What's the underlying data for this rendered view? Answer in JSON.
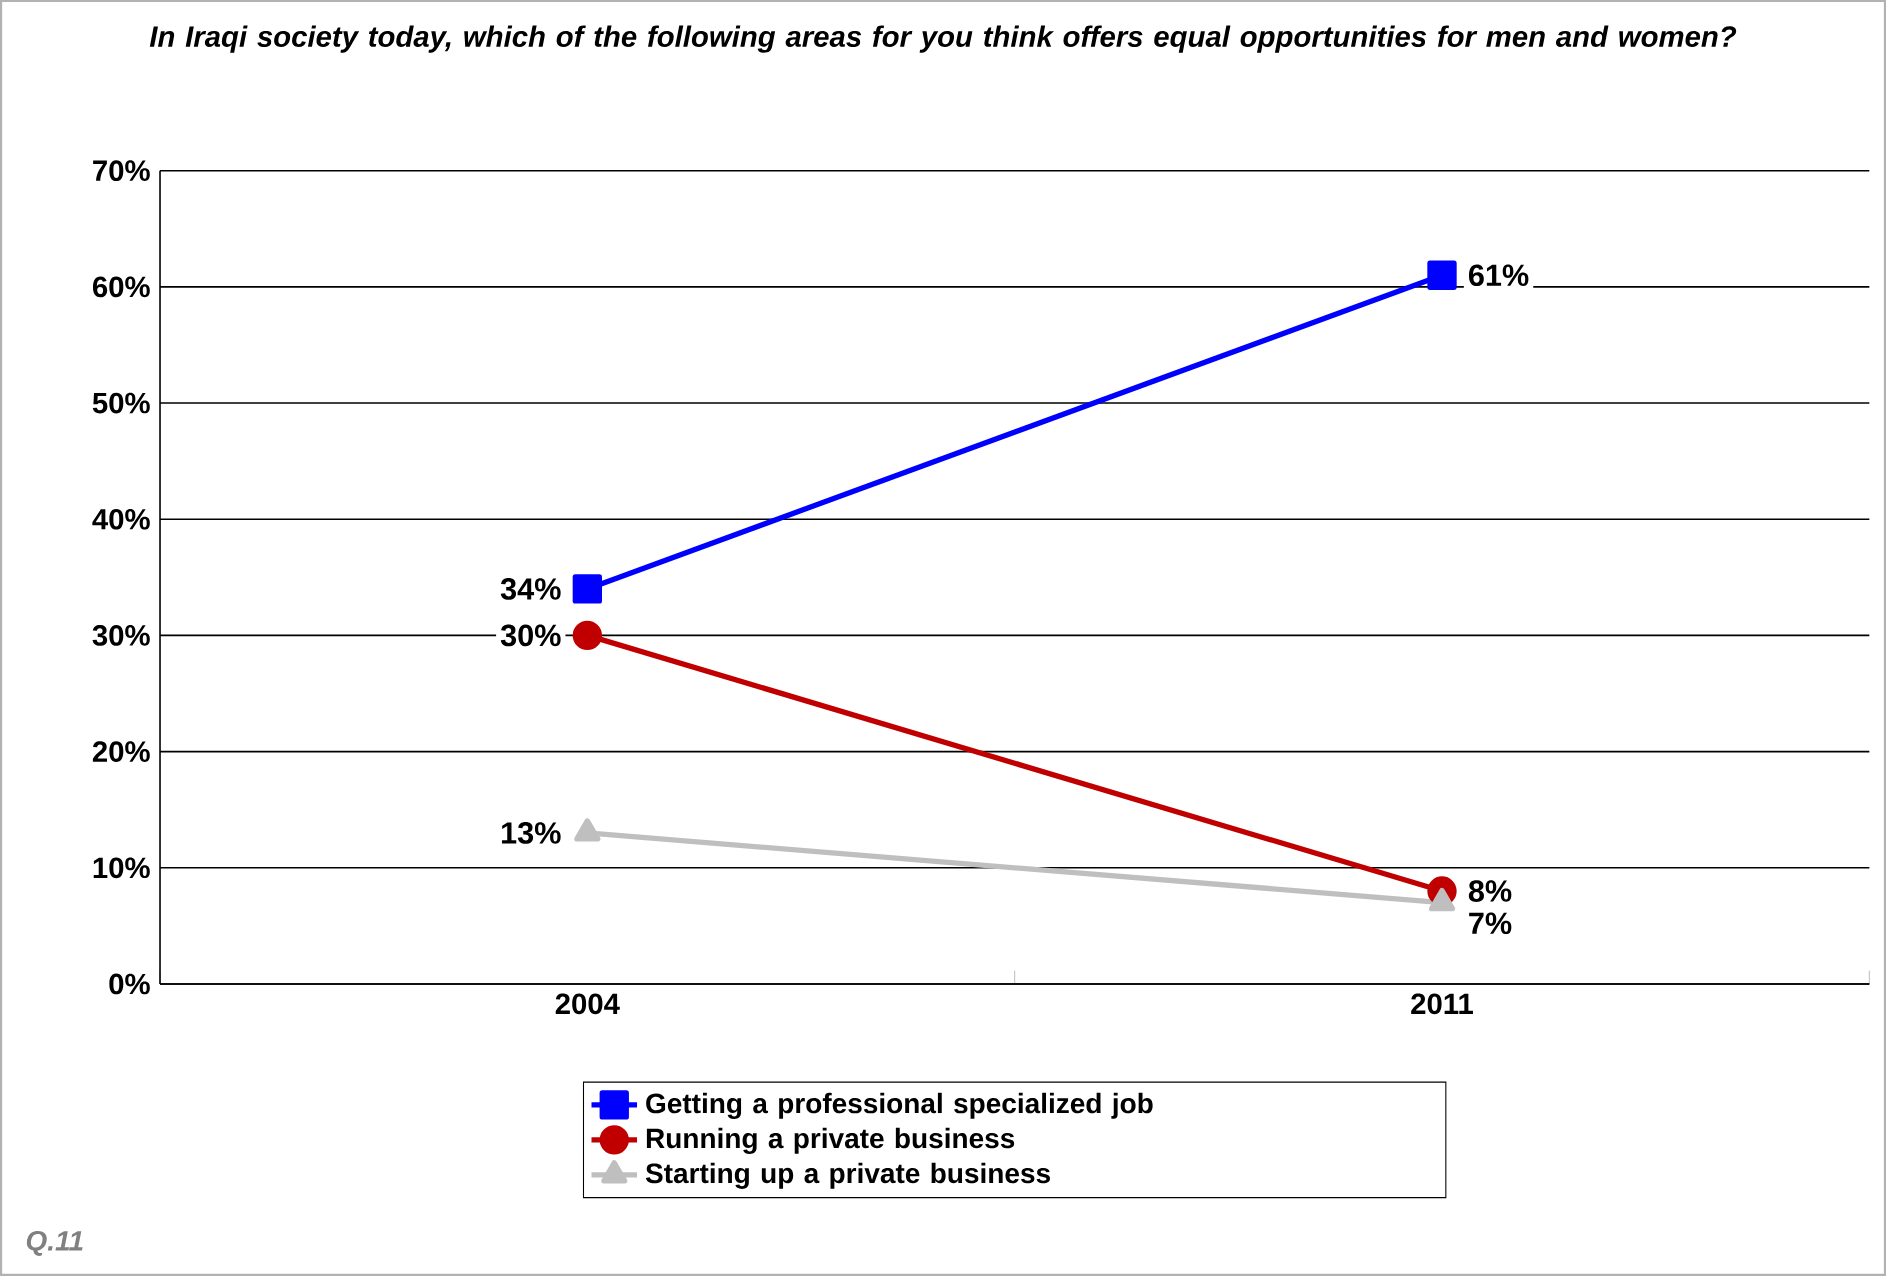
{
  "chart_data": {
    "type": "line",
    "title": "In Iraqi society today, which of the following areas for you think offers equal opportunities for men and women?",
    "categories": [
      "2004",
      "2011"
    ],
    "series": [
      {
        "name": "Getting a professional specialized job",
        "color": "#0000ff",
        "marker": "square",
        "values": [
          34,
          61
        ],
        "value_labels": [
          "34%",
          "61%"
        ]
      },
      {
        "name": "Running a private business",
        "color": "#c00000",
        "marker": "circle",
        "values": [
          30,
          8
        ],
        "value_labels": [
          "30%",
          "8%"
        ]
      },
      {
        "name": "Starting up a private business",
        "color": "#bfbfbf",
        "marker": "triangle",
        "values": [
          13,
          7
        ],
        "value_labels": [
          "13%",
          "7%"
        ]
      }
    ],
    "ylim": [
      0,
      70
    ],
    "yticks": [
      {
        "value": 0,
        "label": "0%"
      },
      {
        "value": 10,
        "label": "10%"
      },
      {
        "value": 20,
        "label": "20%"
      },
      {
        "value": 30,
        "label": "30%"
      },
      {
        "value": 40,
        "label": "40%"
      },
      {
        "value": 50,
        "label": "50%"
      },
      {
        "value": 60,
        "label": "60%"
      },
      {
        "value": 70,
        "label": "70%"
      }
    ],
    "grid": "y",
    "legend": "bottom",
    "line_style": "solid",
    "annotations": [
      "Q.11"
    ]
  }
}
